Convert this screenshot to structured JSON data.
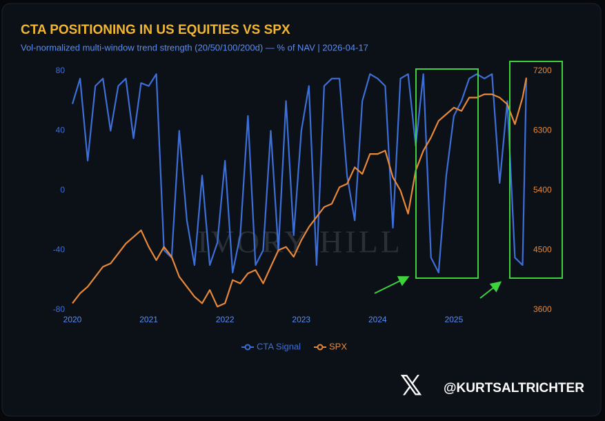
{
  "chart_data": {
    "type": "line",
    "title": "CTA POSITIONING IN US EQUITIES VS SPX",
    "subtitle": "Vol-normalized multi-window trend strength (20/50/100/200d) — % of NAV | 2026-04-17",
    "watermark": "IVORY HILL",
    "handle": "@KURTSALTRICHTER",
    "x": [
      2020.0,
      2020.1,
      2020.2,
      2020.3,
      2020.4,
      2020.5,
      2020.6,
      2020.7,
      2020.8,
      2020.9,
      2021.0,
      2021.1,
      2021.2,
      2021.3,
      2021.4,
      2021.5,
      2021.6,
      2021.7,
      2021.8,
      2021.9,
      2022.0,
      2022.1,
      2022.2,
      2022.3,
      2022.4,
      2022.5,
      2022.6,
      2022.7,
      2022.8,
      2022.9,
      2023.0,
      2023.1,
      2023.2,
      2023.3,
      2023.4,
      2023.5,
      2023.6,
      2023.7,
      2023.8,
      2023.9,
      2024.0,
      2024.1,
      2024.2,
      2024.3,
      2024.4,
      2024.5,
      2024.6,
      2024.7,
      2024.8,
      2024.9,
      2025.0,
      2025.1,
      2025.2,
      2025.3,
      2025.4,
      2025.5,
      2025.6,
      2025.7,
      2025.8,
      2025.9,
      2025.95
    ],
    "series": [
      {
        "name": "CTA Signal",
        "color": "#3d6fd9",
        "axis": "y",
        "values": [
          58,
          75,
          20,
          70,
          75,
          40,
          70,
          75,
          35,
          72,
          70,
          78,
          -40,
          -45,
          40,
          -20,
          -50,
          10,
          -50,
          -35,
          20,
          -55,
          -30,
          50,
          -50,
          -40,
          40,
          -40,
          60,
          -30,
          40,
          70,
          -50,
          70,
          75,
          75,
          10,
          -20,
          60,
          78,
          75,
          70,
          -25,
          75,
          78,
          30,
          78,
          -45,
          -55,
          10,
          50,
          60,
          75,
          78,
          75,
          78,
          5,
          60,
          -45,
          -50,
          75
        ]
      },
      {
        "name": "SPX",
        "color": "#e8893a",
        "axis": "y2",
        "values": [
          3700,
          3850,
          3950,
          4100,
          4250,
          4300,
          4450,
          4600,
          4700,
          4800,
          4550,
          4350,
          4550,
          4400,
          4100,
          3950,
          3800,
          3700,
          3900,
          3650,
          3700,
          4050,
          4000,
          4150,
          4200,
          4000,
          4250,
          4500,
          4550,
          4400,
          4650,
          4850,
          5000,
          5150,
          5200,
          5450,
          5500,
          5750,
          5650,
          5950,
          5950,
          6000,
          5600,
          5400,
          5050,
          5700,
          6000,
          6200,
          6450,
          6550,
          6650,
          6600,
          6800,
          6800,
          6850,
          6850,
          6800,
          6700,
          6400,
          6800,
          7100
        ]
      }
    ],
    "xlim": [
      2020,
      2025.95
    ],
    "xticks": [
      2020,
      2021,
      2022,
      2023,
      2024,
      2025
    ],
    "ylim": [
      -80,
      80
    ],
    "yticks": [
      -80,
      -40,
      0,
      40,
      80
    ],
    "y2lim": [
      3600,
      7200
    ],
    "y2ticks": [
      3600,
      4500,
      5400,
      6300,
      7200
    ],
    "grid": false,
    "legend": "bottom"
  }
}
